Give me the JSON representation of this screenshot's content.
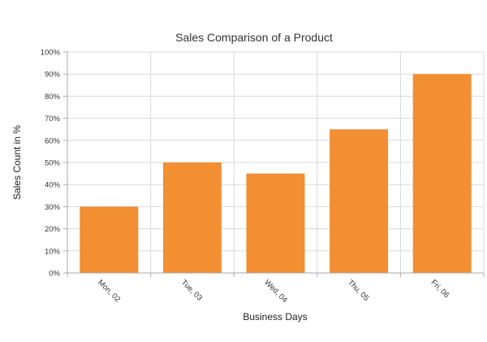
{
  "chart_data": {
    "type": "bar",
    "title": "Sales Comparison of a Product",
    "xlabel": "Business Days",
    "ylabel": "Sales Count in %",
    "categories": [
      "Mon, 02",
      "Tue, 03",
      "Wed, 04",
      "Thu, 05",
      "Fri, 06"
    ],
    "values": [
      30,
      50,
      45,
      65,
      90
    ],
    "ylim": [
      0,
      100
    ],
    "yticks": [
      "0%",
      "10%",
      "20%",
      "30%",
      "40%",
      "50%",
      "60%",
      "70%",
      "80%",
      "90%",
      "100%"
    ],
    "grid": true,
    "legend": "none",
    "bar_color": "#f28f33"
  }
}
